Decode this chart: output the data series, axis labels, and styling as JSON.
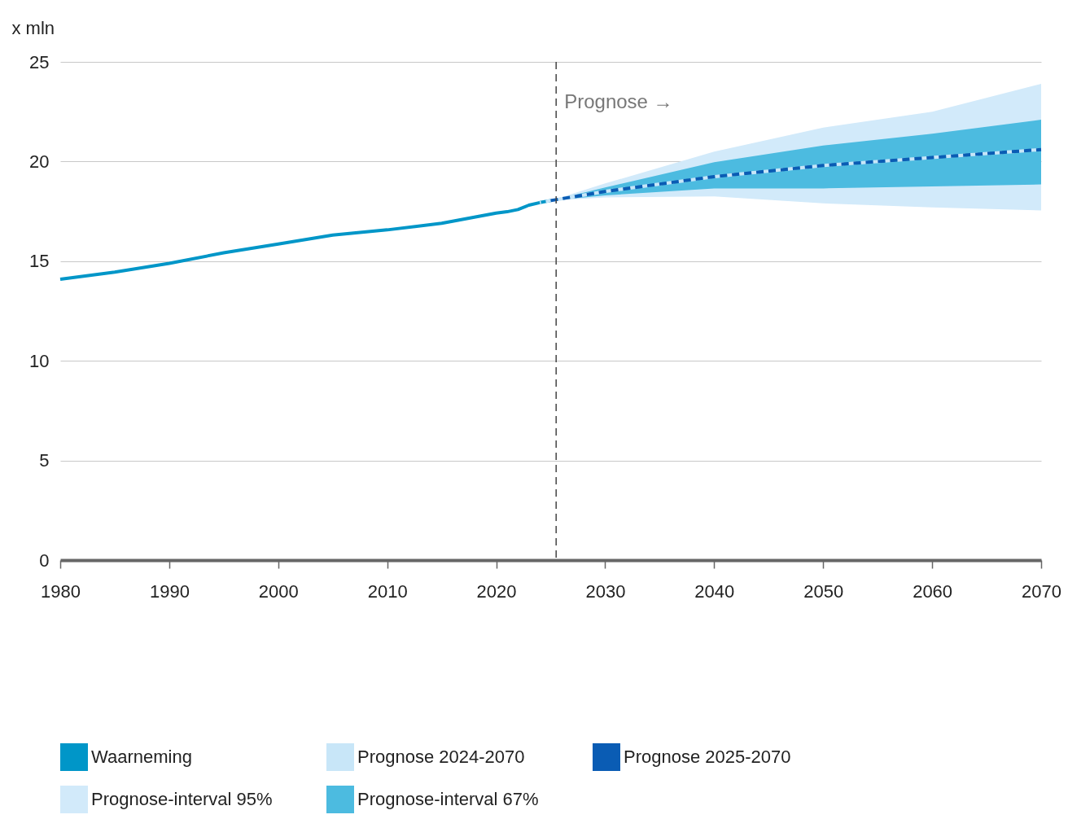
{
  "chart_data": {
    "type": "line",
    "ylabel": "x mln",
    "xlim": [
      1980,
      2070
    ],
    "xticks": [
      1980,
      1990,
      2000,
      2010,
      2020,
      2030,
      2040,
      2050,
      2060,
      2070
    ],
    "ylim": [
      0,
      25
    ],
    "yticks": [
      0,
      5,
      10,
      15,
      20,
      25
    ],
    "grid": "y",
    "legend": "bottom",
    "ref_lines": [
      {
        "axis": "x",
        "value": 2025.5,
        "label": "Prognose →",
        "color": "#444444",
        "line_style": "dashed"
      }
    ],
    "series": [
      {
        "name": "Waarneming",
        "color": "#0096c8",
        "line_style": "solid",
        "x": [
          1980,
          1985,
          1990,
          1995,
          2000,
          2005,
          2010,
          2015,
          2020,
          2021,
          2022,
          2023,
          2024,
          2025
        ],
        "values": [
          14.09,
          14.45,
          14.89,
          15.42,
          15.86,
          16.31,
          16.57,
          16.9,
          17.41,
          17.48,
          17.59,
          17.81,
          17.94,
          18.04
        ]
      },
      {
        "name": "Prognose 2024-2070",
        "color": "#c8e6f8",
        "line_style": "dashed",
        "x": [
          2024,
          2025,
          2030,
          2040,
          2050,
          2060,
          2070
        ],
        "values": [
          17.94,
          18.04,
          18.5,
          19.24,
          19.8,
          20.2,
          20.6
        ]
      },
      {
        "name": "Prognose 2025-2070",
        "color": "#0a5cb4",
        "line_style": "dashed",
        "x": [
          2025,
          2030,
          2040,
          2050,
          2060,
          2070
        ],
        "values": [
          18.04,
          18.5,
          19.24,
          19.8,
          20.2,
          20.6
        ]
      },
      {
        "name": "Prognose-interval 95%",
        "type": "area",
        "color": "#d2eafa",
        "x": [
          2025,
          2030,
          2040,
          2050,
          2060,
          2070
        ],
        "values": [
          null,
          null,
          null,
          null,
          null,
          null
        ],
        "lower": [
          18.04,
          18.2,
          18.25,
          17.9,
          17.7,
          17.55
        ],
        "upper": [
          18.04,
          18.9,
          20.5,
          21.7,
          22.5,
          23.9
        ]
      },
      {
        "name": "Prognose-interval 67%",
        "type": "area",
        "color": "#4cbbe0",
        "x": [
          2025,
          2030,
          2040,
          2050,
          2060,
          2070
        ],
        "values": [
          null,
          null,
          null,
          null,
          null,
          null
        ],
        "lower": [
          18.04,
          18.3,
          18.65,
          18.65,
          18.75,
          18.85
        ],
        "upper": [
          18.04,
          18.7,
          19.97,
          20.8,
          21.4,
          22.1
        ]
      }
    ]
  }
}
